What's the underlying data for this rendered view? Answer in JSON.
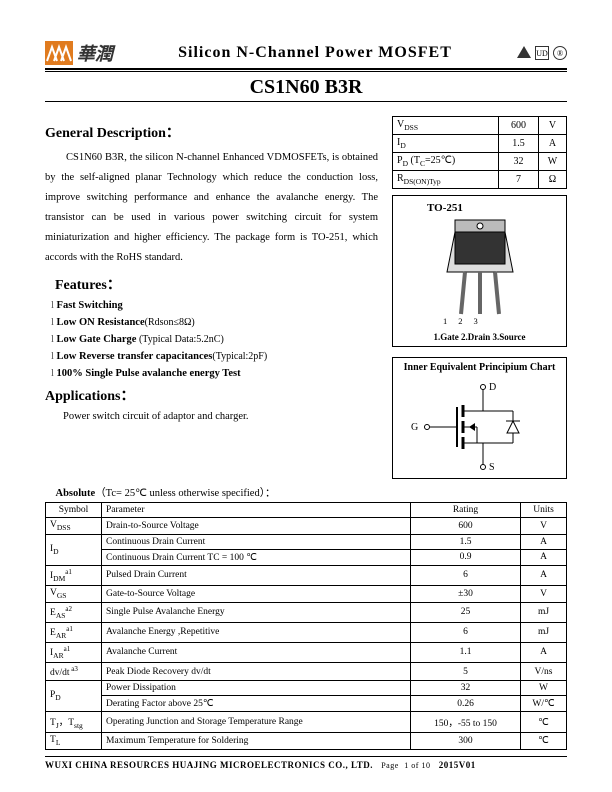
{
  "header": {
    "logo_text": "華潤",
    "title": "Silicon  N-Channel  Power  MOSFET",
    "part": "CS1N60 B3R"
  },
  "gendesc": {
    "heading": "General Description",
    "text": "CS1N60 B3R, the silicon N-channel Enhanced VDMOSFETs, is obtained by the self-aligned planar Technology which reduce the conduction loss, improve switching performance and enhance the avalanche energy. The transistor can be used in various power switching circuit for system miniaturization and higher efficiency. The package form is TO-251, which accords with the RoHS standard."
  },
  "features": {
    "heading": "Features",
    "items": [
      {
        "main": "Fast Switching",
        "note": ""
      },
      {
        "main": "Low ON Resistance",
        "note": "(Rdson≤8Ω)"
      },
      {
        "main": "Low Gate Charge",
        "note": "  (Typical Data:5.2nC)"
      },
      {
        "main": "Low Reverse transfer capacitances",
        "note": "(Typical:2pF)"
      },
      {
        "main": "100% Single Pulse avalanche energy Test",
        "note": ""
      }
    ]
  },
  "applications": {
    "heading": "Applications",
    "text": "Power switch circuit of adaptor and charger."
  },
  "specbox": {
    "rows": [
      {
        "p": "VDSS",
        "v": "600",
        "u": "V"
      },
      {
        "p": "ID",
        "v": "1.5",
        "u": "A"
      },
      {
        "p": "PD (TC=25℃)",
        "v": "32",
        "u": "W"
      },
      {
        "p": "RDS(ON)Typ",
        "v": "7",
        "u": "Ω"
      }
    ]
  },
  "package": {
    "title": "TO-251",
    "pins": [
      "1",
      "2",
      "3"
    ],
    "label": "1.Gate  2.Drain 3.Source"
  },
  "equiv": {
    "title": "Inner Equivalent Principium Chart",
    "left": "G",
    "top": "D",
    "bottom": "S"
  },
  "absolute": {
    "title_bold": "Absolute",
    "title_rest": "（Tc= 25℃ unless otherwise specified）：",
    "head": {
      "sym": "Symbol",
      "param": "Parameter",
      "rate": "Rating",
      "unit": "Units"
    },
    "rows": [
      {
        "sym": "V",
        "sub": "DSS",
        "sup": "",
        "param": "Drain-to-Source Voltage",
        "rate": "600",
        "unit": "V",
        "rowspan": 1
      },
      {
        "sym": "I",
        "sub": "D",
        "sup": "",
        "param": "Continuous Drain Current",
        "rate": "1.5",
        "unit": "A",
        "rowspan": 2
      },
      {
        "sym": "",
        "sub": "",
        "sup": "",
        "param": "Continuous Drain Current TC = 100 ℃",
        "rate": "0.9",
        "unit": "A",
        "rowspan": 0
      },
      {
        "sym": "I",
        "sub": "DM",
        "sup": "a1",
        "param": "Pulsed Drain Current",
        "rate": "6",
        "unit": "A",
        "rowspan": 1
      },
      {
        "sym": "V",
        "sub": "GS",
        "sup": "",
        "param": "Gate-to-Source Voltage",
        "rate": "±30",
        "unit": "V",
        "rowspan": 1
      },
      {
        "sym": "E",
        "sub": "AS",
        "sup": "a2",
        "param": "Single Pulse Avalanche Energy",
        "rate": "25",
        "unit": "mJ",
        "rowspan": 1
      },
      {
        "sym": "E",
        "sub": "AR",
        "sup": "a1",
        "param": "Avalanche Energy ,Repetitive",
        "rate": "6",
        "unit": "mJ",
        "rowspan": 1
      },
      {
        "sym": "I",
        "sub": "AR",
        "sup": "a1",
        "param": "Avalanche Current",
        "rate": "1.1",
        "unit": "A",
        "rowspan": 1
      },
      {
        "sym": "dv/dt",
        "sub": "",
        "sup": " a3",
        "param": "Peak Diode Recovery dv/dt",
        "rate": "5",
        "unit": "V/ns",
        "rowspan": 1
      },
      {
        "sym": "P",
        "sub": "D",
        "sup": "",
        "param": "Power Dissipation",
        "rate": "32",
        "unit": "W",
        "rowspan": 2
      },
      {
        "sym": "",
        "sub": "",
        "sup": "",
        "param": "Derating Factor above 25℃",
        "rate": "0.26",
        "unit": "W/℃",
        "rowspan": 0
      },
      {
        "sym": "T",
        "sub": "J",
        "sup": "",
        "sym2": "，T",
        "sub2": "stg",
        "param": "Operating Junction and Storage Temperature Range",
        "rate": "150，-55 to 150",
        "unit": "℃",
        "rowspan": 1
      },
      {
        "sym": "T",
        "sub": "L",
        "sup": "",
        "param": "Maximum Temperature for Soldering",
        "rate": "300",
        "unit": "℃",
        "rowspan": 1
      }
    ]
  },
  "footer": {
    "company": "WUXI CHINA RESOURCES HUAJING MICROELECTRONICS CO., LTD.",
    "page_lbl": "Page",
    "page": "1 of 10",
    "rev": "2015V01"
  },
  "colors": {
    "logo": "#e07b1f",
    "text": "#000000",
    "rule": "#000000"
  }
}
